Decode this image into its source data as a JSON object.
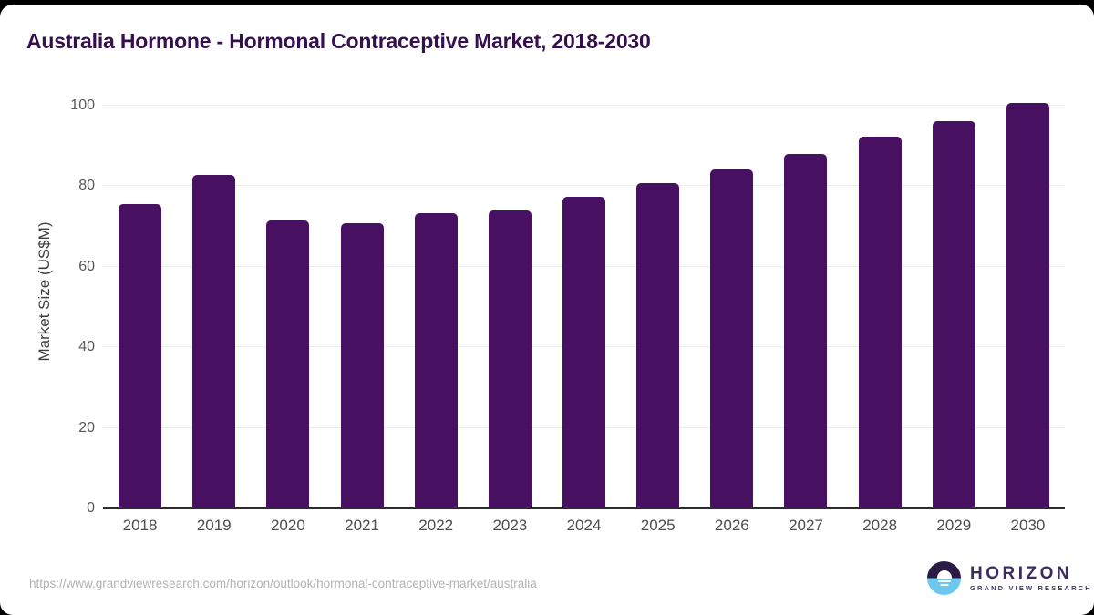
{
  "page": {
    "background_color": "#000000",
    "card_color": "#ffffff"
  },
  "header": {
    "title": "Australia Hormone - Hormonal Contraceptive Market, 2018-2030",
    "title_color": "#35104d"
  },
  "chart_data": {
    "type": "bar",
    "title": "Australia Hormone - Hormonal Contraceptive Market, 2018-2030",
    "categories": [
      "2018",
      "2019",
      "2020",
      "2021",
      "2022",
      "2023",
      "2024",
      "2025",
      "2026",
      "2027",
      "2028",
      "2029",
      "2030"
    ],
    "values": [
      75.5,
      82.7,
      71.4,
      70.8,
      73.3,
      74.0,
      77.3,
      80.7,
      84.2,
      88.1,
      92.2,
      96.1,
      100.6
    ],
    "xlabel": "",
    "ylabel": "Market Size (US$M)",
    "ylim": [
      0,
      100
    ],
    "yticks": [
      0,
      20,
      40,
      60,
      80,
      100
    ],
    "grid": true,
    "legend": false,
    "bar_color": "#481061",
    "gridline_color": "#ececec",
    "axis_line_color": "#2c2c2c",
    "tick_label_color": "#5a5a5a"
  },
  "footer": {
    "source_url": "https://www.grandviewresearch.com/horizon/outlook/hormonal-contraceptive-market/australia",
    "logo": {
      "name": "HORIZON",
      "tagline": "GRAND VIEW RESEARCH",
      "mark_top_color": "#2a1a45",
      "mark_bottom_color": "#6cc8ef"
    }
  }
}
